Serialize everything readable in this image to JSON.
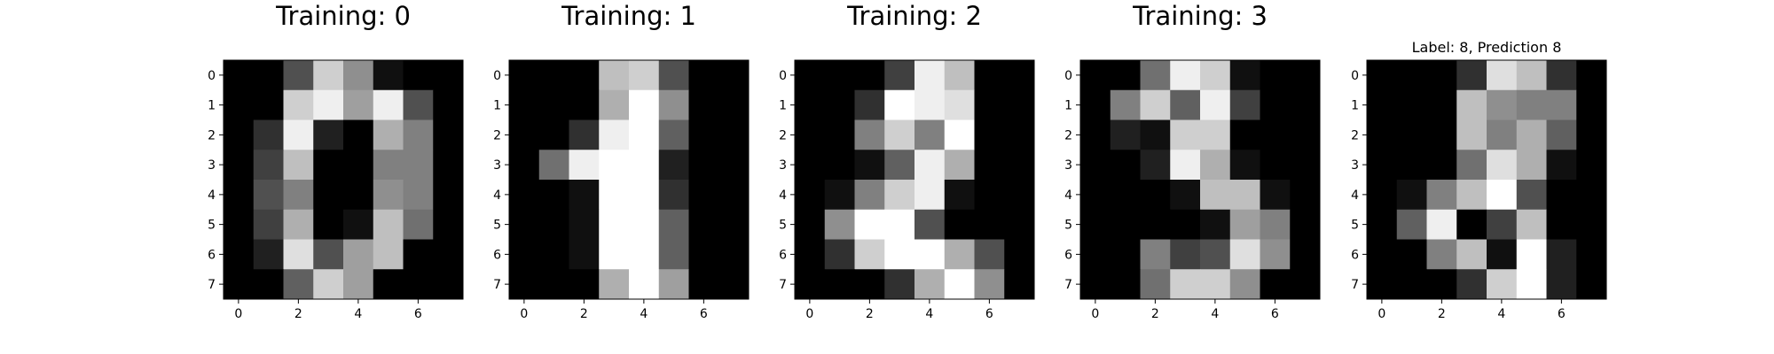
{
  "chart_data": [
    {
      "type": "heatmap",
      "title": "Training: 0",
      "colormap": "gray",
      "vmin": 0,
      "vmax": 16,
      "xticks": [
        0,
        2,
        4,
        6
      ],
      "yticks": [
        0,
        1,
        2,
        3,
        4,
        5,
        6,
        7
      ],
      "values": [
        [
          0,
          0,
          5,
          13,
          9,
          1,
          0,
          0
        ],
        [
          0,
          0,
          13,
          15,
          10,
          15,
          5,
          0
        ],
        [
          0,
          3,
          15,
          2,
          0,
          11,
          8,
          0
        ],
        [
          0,
          4,
          12,
          0,
          0,
          8,
          8,
          0
        ],
        [
          0,
          5,
          8,
          0,
          0,
          9,
          8,
          0
        ],
        [
          0,
          4,
          11,
          0,
          1,
          12,
          7,
          0
        ],
        [
          0,
          2,
          14,
          5,
          10,
          12,
          0,
          0
        ],
        [
          0,
          0,
          6,
          13,
          10,
          0,
          0,
          0
        ]
      ]
    },
    {
      "type": "heatmap",
      "title": "Training: 1",
      "colormap": "gray",
      "vmin": 0,
      "vmax": 16,
      "xticks": [
        0,
        2,
        4,
        6
      ],
      "yticks": [
        0,
        1,
        2,
        3,
        4,
        5,
        6,
        7
      ],
      "values": [
        [
          0,
          0,
          0,
          12,
          13,
          5,
          0,
          0
        ],
        [
          0,
          0,
          0,
          11,
          16,
          9,
          0,
          0
        ],
        [
          0,
          0,
          3,
          15,
          16,
          6,
          0,
          0
        ],
        [
          0,
          7,
          15,
          16,
          16,
          2,
          0,
          0
        ],
        [
          0,
          0,
          1,
          16,
          16,
          3,
          0,
          0
        ],
        [
          0,
          0,
          1,
          16,
          16,
          6,
          0,
          0
        ],
        [
          0,
          0,
          1,
          16,
          16,
          6,
          0,
          0
        ],
        [
          0,
          0,
          0,
          11,
          16,
          10,
          0,
          0
        ]
      ]
    },
    {
      "type": "heatmap",
      "title": "Training: 2",
      "colormap": "gray",
      "vmin": 0,
      "vmax": 16,
      "xticks": [
        0,
        2,
        4,
        6
      ],
      "yticks": [
        0,
        1,
        2,
        3,
        4,
        5,
        6,
        7
      ],
      "values": [
        [
          0,
          0,
          0,
          4,
          15,
          12,
          0,
          0
        ],
        [
          0,
          0,
          3,
          16,
          15,
          14,
          0,
          0
        ],
        [
          0,
          0,
          8,
          13,
          8,
          16,
          0,
          0
        ],
        [
          0,
          0,
          1,
          6,
          15,
          11,
          0,
          0
        ],
        [
          0,
          1,
          8,
          13,
          15,
          1,
          0,
          0
        ],
        [
          0,
          9,
          16,
          16,
          5,
          0,
          0,
          0
        ],
        [
          0,
          3,
          13,
          16,
          16,
          11,
          5,
          0
        ],
        [
          0,
          0,
          0,
          3,
          11,
          16,
          9,
          0
        ]
      ]
    },
    {
      "type": "heatmap",
      "title": "Training: 3",
      "colormap": "gray",
      "vmin": 0,
      "vmax": 16,
      "xticks": [
        0,
        2,
        4,
        6
      ],
      "yticks": [
        0,
        1,
        2,
        3,
        4,
        5,
        6,
        7
      ],
      "values": [
        [
          0,
          0,
          7,
          15,
          13,
          1,
          0,
          0
        ],
        [
          0,
          8,
          13,
          6,
          15,
          4,
          0,
          0
        ],
        [
          0,
          2,
          1,
          13,
          13,
          0,
          0,
          0
        ],
        [
          0,
          0,
          2,
          15,
          11,
          1,
          0,
          0
        ],
        [
          0,
          0,
          0,
          1,
          12,
          12,
          1,
          0
        ],
        [
          0,
          0,
          0,
          0,
          1,
          10,
          8,
          0
        ],
        [
          0,
          0,
          8,
          4,
          5,
          14,
          9,
          0
        ],
        [
          0,
          0,
          7,
          13,
          13,
          9,
          0,
          0
        ]
      ]
    },
    {
      "type": "heatmap",
      "title": "Label: 8, Prediction 8",
      "colormap": "gray",
      "vmin": 0,
      "vmax": 16,
      "xticks": [
        0,
        2,
        4,
        6
      ],
      "yticks": [
        0,
        1,
        2,
        3,
        4,
        5,
        6,
        7
      ],
      "values": [
        [
          0,
          0,
          0,
          3,
          14,
          12,
          3,
          0
        ],
        [
          0,
          0,
          0,
          12,
          9,
          8,
          8,
          0
        ],
        [
          0,
          0,
          0,
          12,
          8,
          11,
          6,
          0
        ],
        [
          0,
          0,
          0,
          7,
          14,
          11,
          1,
          0
        ],
        [
          0,
          1,
          8,
          12,
          16,
          5,
          0,
          0
        ],
        [
          0,
          6,
          15,
          0,
          4,
          12,
          0,
          0
        ],
        [
          0,
          0,
          8,
          12,
          1,
          16,
          2,
          0
        ],
        [
          0,
          0,
          0,
          3,
          13,
          16,
          2,
          0
        ]
      ]
    }
  ]
}
